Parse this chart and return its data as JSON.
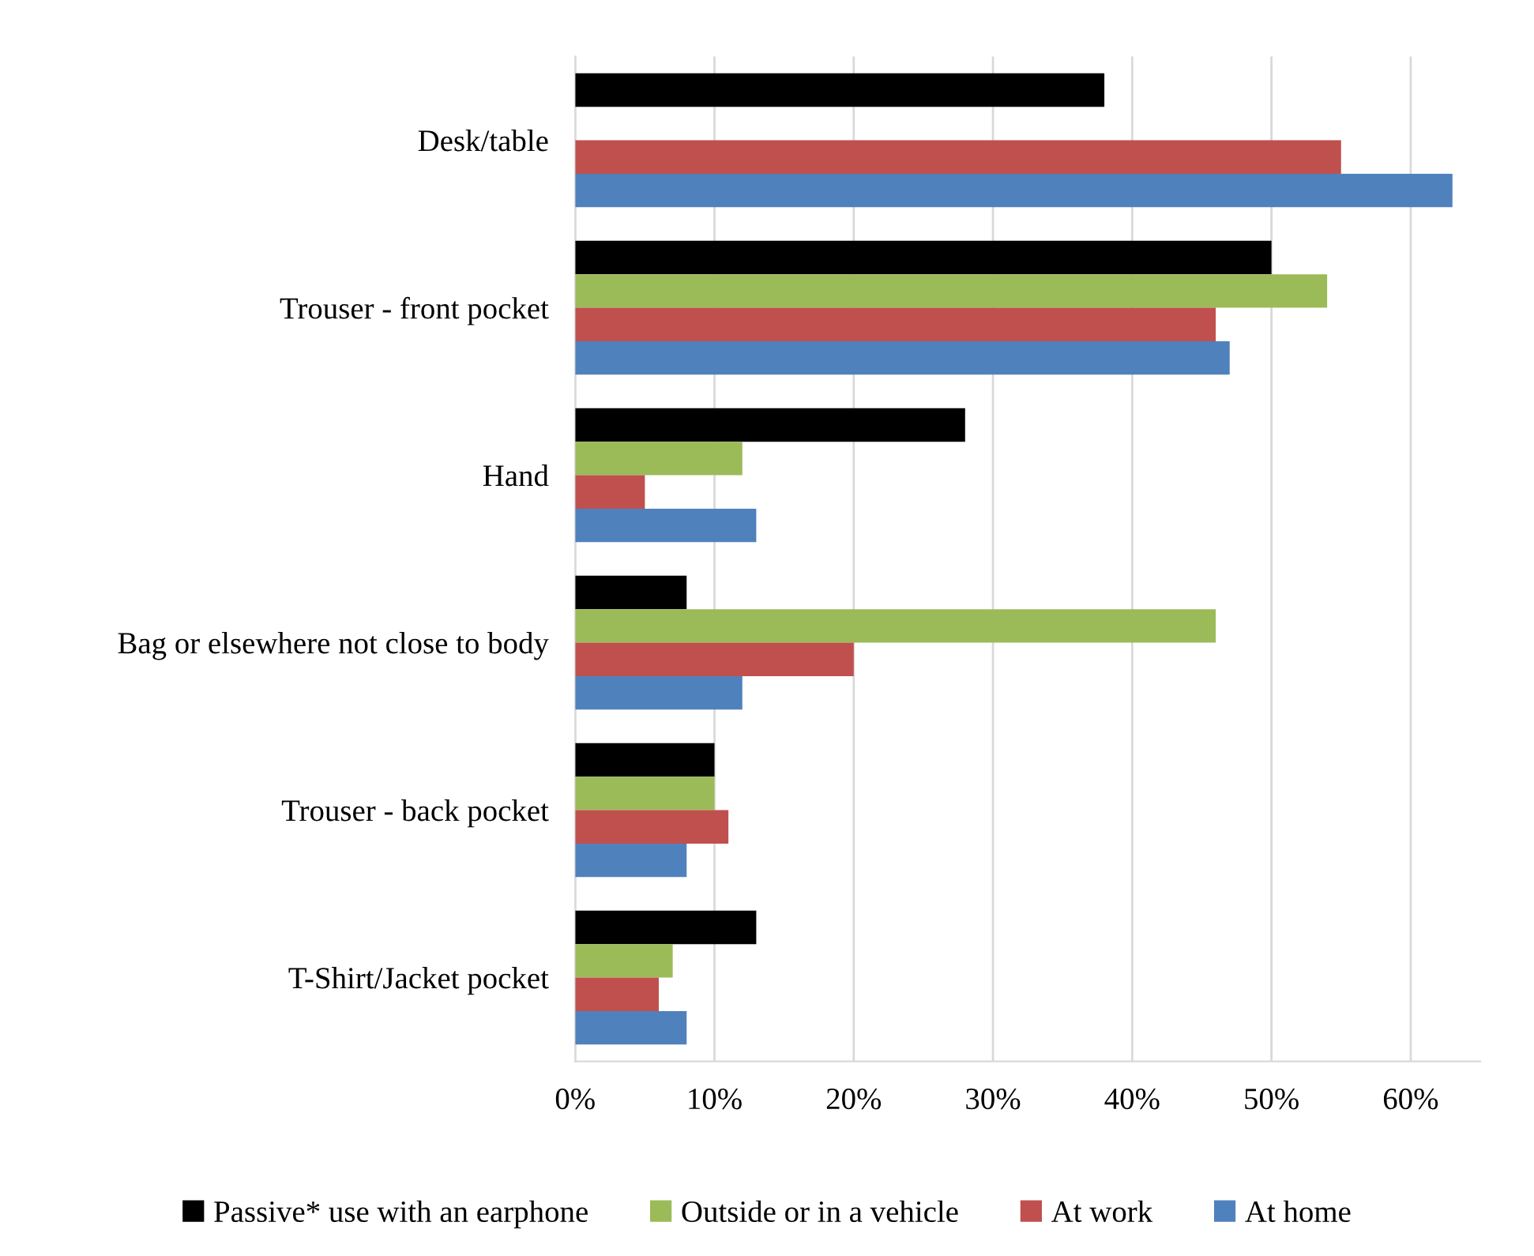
{
  "chart_data": {
    "type": "bar",
    "orientation": "horizontal",
    "categories": [
      "Desk/table",
      "Trouser - front pocket",
      "Hand",
      "Bag or elsewhere not close to body",
      "Trouser - back pocket",
      "T-Shirt/Jacket pocket"
    ],
    "series": [
      {
        "name": "Passive* use with an earphone",
        "color": "#000000",
        "values": [
          38,
          50,
          28,
          8,
          10,
          13
        ]
      },
      {
        "name": "Outside or in a vehicle",
        "color": "#9bbb59",
        "values": [
          null,
          54,
          12,
          46,
          10,
          7
        ]
      },
      {
        "name": "At work",
        "color": "#c0504d",
        "values": [
          55,
          46,
          5,
          20,
          11,
          6
        ]
      },
      {
        "name": "At home",
        "color": "#4f81bd",
        "values": [
          63,
          47,
          13,
          12,
          8,
          8
        ]
      }
    ],
    "xlim": [
      0,
      65
    ],
    "xticks": [
      {
        "value": 0,
        "label": "0%"
      },
      {
        "value": 10,
        "label": "10%"
      },
      {
        "value": 20,
        "label": "20%"
      },
      {
        "value": 30,
        "label": "30%"
      },
      {
        "value": 40,
        "label": "40%"
      },
      {
        "value": 50,
        "label": "50%"
      },
      {
        "value": 60,
        "label": "60%"
      }
    ],
    "grid": "x",
    "legend": "bottom"
  }
}
